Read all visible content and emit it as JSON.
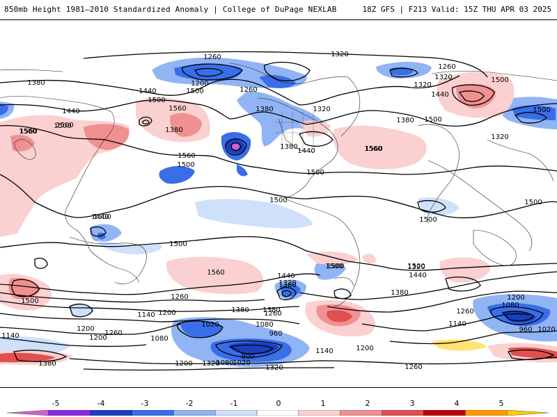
{
  "header": {
    "title": "850mb Height 1981–2010 Standardized Anomaly | College of DuPage NEXLAB",
    "run_info": "18Z GFS | F213 Valid: 15Z THU APR 03 2025"
  },
  "map": {
    "variable": "850mb geopotential height (contours) and standardized anomaly (shading)",
    "contour_labels": [
      "1260",
      "1320",
      "1380",
      "1440",
      "1500",
      "1560",
      "1500",
      "1380",
      "1440",
      "1500",
      "1320",
      "1380",
      "1200",
      "1260",
      "1320",
      "1260",
      "1320",
      "1440",
      "1500",
      "1380",
      "1380",
      "1500",
      "1560",
      "1440",
      "1560",
      "1500",
      "1500",
      "1500",
      "1500",
      "1500",
      "1500",
      "1500",
      "1500",
      "1560",
      "1560",
      "1500",
      "1440",
      "1320",
      "1500",
      "1380",
      "1320",
      "1440",
      "1560",
      "1500",
      "1380",
      "1380",
      "1500",
      "1200",
      "1260",
      "1320",
      "1140",
      "1260",
      "1200",
      "1080",
      "1020",
      "1380",
      "1260",
      "1080",
      "960",
      "900",
      "1020",
      "1140",
      "1200",
      "1140",
      "1260",
      "1200",
      "1080",
      "960",
      "1020",
      "1140",
      "1200",
      "1320",
      "1380",
      "1080",
      "1320",
      "1440",
      "1500",
      "1260",
      "1200",
      "1500"
    ]
  },
  "colorbar": {
    "ticks": [
      "-5",
      "-4",
      "-3",
      "-2",
      "-1",
      "0",
      "1",
      "2",
      "3",
      "4",
      "5"
    ],
    "colors": [
      "#d060d0",
      "#8a2be2",
      "#1c3fbf",
      "#3a6ee8",
      "#90b4f4",
      "#cfe0fb",
      "#ffffff",
      "#fbd0d0",
      "#f09090",
      "#e05050",
      "#c00000",
      "#ff9900",
      "#ffcc00"
    ]
  }
}
